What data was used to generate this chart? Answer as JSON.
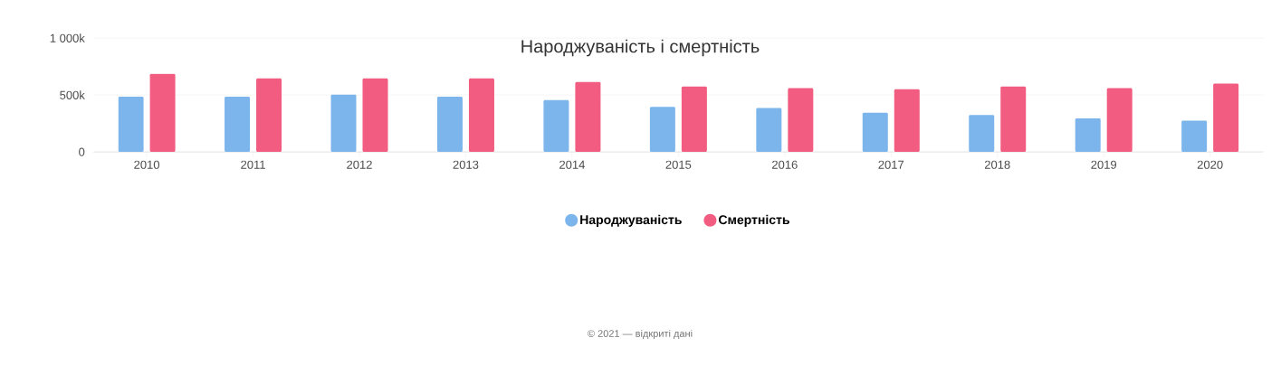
{
  "chart_data": {
    "type": "bar",
    "title": "Народжуваність і смертність",
    "categories": [
      "2010",
      "2011",
      "2012",
      "2013",
      "2014",
      "2015",
      "2016",
      "2017",
      "2018",
      "2019",
      "2020"
    ],
    "series": [
      {
        "name": "Народжуваність",
        "color": "#7cb5ec",
        "values": [
          485000,
          485000,
          505000,
          485000,
          455000,
          395000,
          385000,
          345000,
          325000,
          295000,
          275000
        ]
      },
      {
        "name": "Смертність",
        "color": "#f15c80",
        "values": [
          685000,
          645000,
          645000,
          645000,
          615000,
          575000,
          560000,
          550000,
          575000,
          560000,
          600000
        ]
      }
    ],
    "ylim": [
      0,
      1000000
    ],
    "yticks": [
      0,
      {
        "value": 500000,
        "label": "500k"
      },
      {
        "value": 1000000,
        "label": "1 000k"
      }
    ],
    "grid": "y",
    "legend": "bottom",
    "annotations": [
      "© 2021 — відкриті дані"
    ]
  }
}
